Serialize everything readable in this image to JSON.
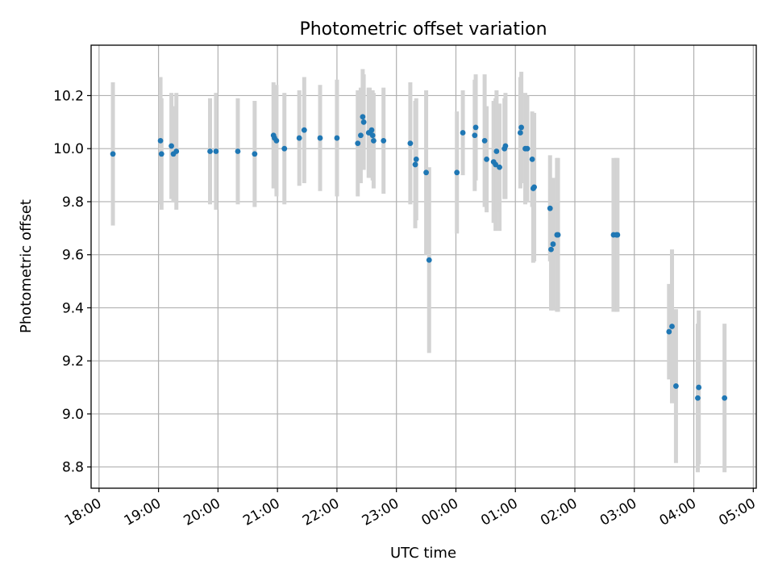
{
  "chart_data": {
    "type": "scatter",
    "title": "Photometric offset variation",
    "xlabel": "UTC time",
    "ylabel": "Photometric offset",
    "x_axis_kind": "time",
    "xlim": [
      "17:52",
      "05:03"
    ],
    "ylim": [
      8.72,
      10.39
    ],
    "x_ticks": [
      "18:00",
      "19:00",
      "20:00",
      "21:00",
      "22:00",
      "23:00",
      "00:00",
      "01:00",
      "02:00",
      "03:00",
      "04:00",
      "05:00"
    ],
    "y_ticks": [
      "8.8",
      "9.0",
      "9.2",
      "9.4",
      "9.6",
      "9.8",
      "10.0",
      "10.2"
    ],
    "grid": true,
    "colors": {
      "points": "#1f77b4",
      "errorbars": "#d3d3d3",
      "grid": "#b0b0b0"
    },
    "series": [
      {
        "x": [
          "18:14",
          "19:02",
          "19:03",
          "19:13",
          "19:15",
          "19:18",
          "19:52",
          "19:58",
          "20:20",
          "20:37",
          "20:56",
          "20:57",
          "20:59",
          "21:07",
          "21:22",
          "21:27",
          "21:43",
          "22:00",
          "22:21",
          "22:24",
          "22:26",
          "22:27",
          "22:32",
          "22:33",
          "22:35",
          "22:36",
          "22:37",
          "22:47",
          "23:14",
          "23:19",
          "23:20",
          "23:30",
          "23:33",
          "00:01",
          "00:07",
          "00:19",
          "00:20",
          "00:29",
          "00:31",
          "00:38",
          "00:40",
          "00:41",
          "00:44",
          "00:49",
          "00:50",
          "01:05",
          "01:06",
          "01:10",
          "01:12",
          "01:17",
          "01:18",
          "01:19",
          "01:35",
          "01:36",
          "01:38",
          "01:42",
          "01:43",
          "02:39",
          "02:42",
          "02:43",
          "03:35",
          "03:38",
          "03:42",
          "04:04",
          "04:05",
          "04:31"
        ],
        "y": [
          9.98,
          10.03,
          9.98,
          10.01,
          9.98,
          9.99,
          9.99,
          9.99,
          9.99,
          9.98,
          10.05,
          10.04,
          10.03,
          10.0,
          10.04,
          10.07,
          10.04,
          10.04,
          10.02,
          10.05,
          10.12,
          10.1,
          10.06,
          10.06,
          10.07,
          10.05,
          10.03,
          10.03,
          10.02,
          9.94,
          9.96,
          9.91,
          9.58,
          9.91,
          10.06,
          10.05,
          10.08,
          10.03,
          9.96,
          9.95,
          9.94,
          9.99,
          9.93,
          10.0,
          10.01,
          10.06,
          10.08,
          10.0,
          10.0,
          9.96,
          9.85,
          9.855,
          9.775,
          9.62,
          9.64,
          9.675,
          9.675,
          9.675,
          9.675,
          9.675,
          9.31,
          9.33,
          9.105,
          9.06,
          9.1,
          9.06
        ],
        "yerr": [
          0.27,
          0.24,
          0.21,
          0.2,
          0.18,
          0.22,
          0.2,
          0.22,
          0.2,
          0.2,
          0.2,
          0.19,
          0.21,
          0.21,
          0.18,
          0.2,
          0.2,
          0.22,
          0.2,
          0.18,
          0.18,
          0.18,
          0.17,
          0.17,
          0.15,
          0.17,
          0.18,
          0.2,
          0.23,
          0.24,
          0.23,
          0.31,
          0.35,
          0.23,
          0.16,
          0.21,
          0.2,
          0.25,
          0.2,
          0.23,
          0.25,
          0.23,
          0.24,
          0.19,
          0.2,
          0.21,
          0.21,
          0.21,
          0.2,
          0.18,
          0.28,
          0.28,
          0.2,
          0.23,
          0.25,
          0.29,
          0.29,
          0.29,
          0.29,
          0.29,
          0.18,
          0.29,
          0.29,
          0.28,
          0.29,
          0.28
        ]
      }
    ]
  }
}
